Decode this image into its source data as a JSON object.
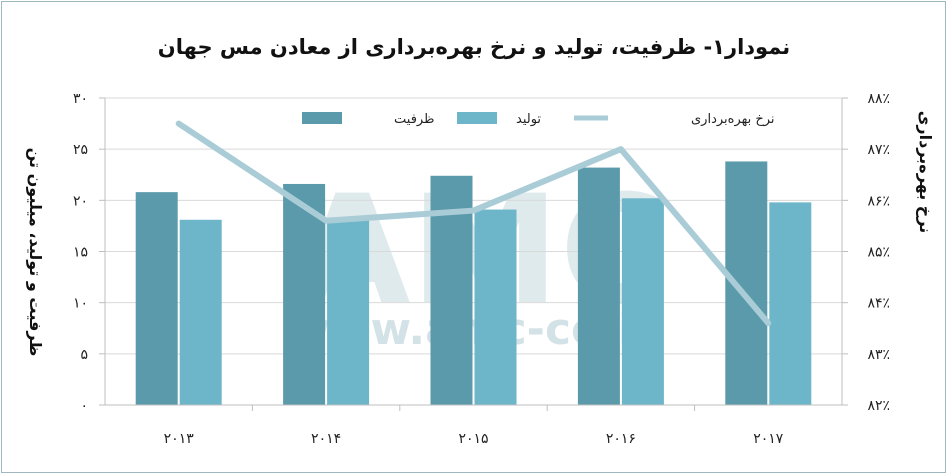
{
  "chart_data": {
    "type": "bar",
    "title": "نمودار۱- ظرفیت، تولید و نرخ بهره‌برداری از معادن مس جهان",
    "ylabel": "ظرفیت و تولید، میلیون تن",
    "y2label": "نرخ بهره‌برداری",
    "categories": [
      "۲۰۱۳",
      "۲۰۱۴",
      "۲۰۱۵",
      "۲۰۱۶",
      "۲۰۱۷"
    ],
    "ylim": [
      0,
      30
    ],
    "y_ticks": [
      0,
      5,
      10,
      15,
      20,
      25,
      30
    ],
    "y_tick_labels": [
      "۰",
      "۵",
      "۱۰",
      "۱۵",
      "۲۰",
      "۲۵",
      "۳۰"
    ],
    "y2lim": [
      82,
      88
    ],
    "y2_ticks": [
      82,
      83,
      84,
      85,
      86,
      87,
      88
    ],
    "y2_tick_labels": [
      "۸۲٪",
      "۸۳٪",
      "۸۴٪",
      "۸۵٪",
      "۸۶٪",
      "۸۷٪",
      "۸۸٪"
    ],
    "series": [
      {
        "name": "ظرفیت",
        "type": "bar",
        "axis": "left",
        "color": "#5b9aaa",
        "values": [
          20.8,
          21.6,
          22.4,
          23.2,
          23.8
        ]
      },
      {
        "name": "تولید",
        "type": "bar",
        "axis": "left",
        "color": "#6db6c9",
        "values": [
          18.1,
          18.3,
          19.1,
          20.2,
          19.8
        ]
      },
      {
        "name": "نرخ بهره‌برداری",
        "type": "line",
        "axis": "right",
        "color": "#a9ccd7",
        "values": [
          87.5,
          85.6,
          85.8,
          87.0,
          83.6
        ]
      }
    ],
    "grid": true,
    "legend_position": "top-center",
    "watermark": {
      "main": "AMC",
      "sub": "www.amc-co.ir"
    }
  }
}
